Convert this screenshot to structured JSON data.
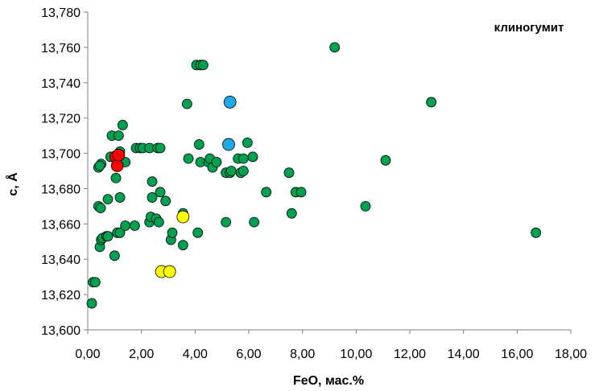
{
  "chart_data": {
    "type": "scatter",
    "title": "",
    "annotation": "клиногумит",
    "xlabel": "FeO, мас.%",
    "ylabel": "c, Å",
    "xlim": [
      0,
      18
    ],
    "ylim": [
      13.6,
      13.78
    ],
    "grid": false,
    "x_ticks": [
      0,
      2,
      4,
      6,
      8,
      10,
      12,
      14,
      16,
      18
    ],
    "y_ticks": [
      13.6,
      13.62,
      13.64,
      13.66,
      13.68,
      13.7,
      13.72,
      13.74,
      13.76,
      13.78
    ],
    "x_tick_labels": [
      "0,00",
      "2,00",
      "4,00",
      "6,00",
      "8,00",
      "10,00",
      "12,00",
      "14,00",
      "16,00",
      "18,00"
    ],
    "y_tick_labels": [
      "13,600",
      "13,620",
      "13,640",
      "13,660",
      "13,680",
      "13,700",
      "13,720",
      "13,740",
      "13,760",
      "13,780"
    ],
    "series": [
      {
        "color": "#00a050",
        "points": [
          [
            0.15,
            13.615
          ],
          [
            0.2,
            13.627
          ],
          [
            0.28,
            13.627
          ],
          [
            0.4,
            13.692
          ],
          [
            0.5,
            13.694
          ],
          [
            0.45,
            13.693
          ],
          [
            0.4,
            13.67
          ],
          [
            0.48,
            13.669
          ],
          [
            0.45,
            13.647
          ],
          [
            0.5,
            13.651
          ],
          [
            0.55,
            13.652
          ],
          [
            0.7,
            13.653
          ],
          [
            0.75,
            13.653
          ],
          [
            0.75,
            13.674
          ],
          [
            0.85,
            13.698
          ],
          [
            0.9,
            13.71
          ],
          [
            1.0,
            13.642
          ],
          [
            1.05,
            13.686
          ],
          [
            1.1,
            13.655
          ],
          [
            1.15,
            13.71
          ],
          [
            1.2,
            13.655
          ],
          [
            1.2,
            13.675
          ],
          [
            1.2,
            13.701
          ],
          [
            1.3,
            13.716
          ],
          [
            1.4,
            13.695
          ],
          [
            1.4,
            13.659
          ],
          [
            1.75,
            13.659
          ],
          [
            1.8,
            13.703
          ],
          [
            1.95,
            13.703
          ],
          [
            2.05,
            13.703
          ],
          [
            2.3,
            13.661
          ],
          [
            2.35,
            13.664
          ],
          [
            2.3,
            13.703
          ],
          [
            2.4,
            13.684
          ],
          [
            2.4,
            13.675
          ],
          [
            2.55,
            13.663
          ],
          [
            2.6,
            13.703
          ],
          [
            2.65,
            13.661
          ],
          [
            2.7,
            13.703
          ],
          [
            2.7,
            13.678
          ],
          [
            2.9,
            13.673
          ],
          [
            3.1,
            13.651
          ],
          [
            3.15,
            13.655
          ],
          [
            3.55,
            13.648
          ],
          [
            3.55,
            13.666
          ],
          [
            3.7,
            13.728
          ],
          [
            3.75,
            13.697
          ],
          [
            4.05,
            13.75
          ],
          [
            4.1,
            13.655
          ],
          [
            4.15,
            13.705
          ],
          [
            4.2,
            13.695
          ],
          [
            4.2,
            13.75
          ],
          [
            4.3,
            13.75
          ],
          [
            4.5,
            13.695
          ],
          [
            4.55,
            13.697
          ],
          [
            4.65,
            13.692
          ],
          [
            4.8,
            13.695
          ],
          [
            5.15,
            13.661
          ],
          [
            5.15,
            13.689
          ],
          [
            5.3,
            13.689
          ],
          [
            5.35,
            13.69
          ],
          [
            5.6,
            13.697
          ],
          [
            5.7,
            13.689
          ],
          [
            5.8,
            13.697
          ],
          [
            5.8,
            13.69
          ],
          [
            5.95,
            13.706
          ],
          [
            6.15,
            13.698
          ],
          [
            6.2,
            13.661
          ],
          [
            6.65,
            13.678
          ],
          [
            7.5,
            13.689
          ],
          [
            7.6,
            13.666
          ],
          [
            7.75,
            13.678
          ],
          [
            7.95,
            13.678
          ],
          [
            9.2,
            13.76
          ],
          [
            10.35,
            13.67
          ],
          [
            11.1,
            13.696
          ],
          [
            12.8,
            13.729
          ],
          [
            16.7,
            13.655
          ]
        ]
      },
      {
        "color": "#ff0000",
        "points": [
          [
            1.05,
            13.698
          ],
          [
            1.1,
            13.693
          ],
          [
            1.15,
            13.699
          ]
        ]
      },
      {
        "color": "#20a8e8",
        "points": [
          [
            5.25,
            13.705
          ],
          [
            5.3,
            13.729
          ]
        ]
      },
      {
        "color": "#ffff00",
        "points": [
          [
            2.75,
            13.633
          ],
          [
            3.05,
            13.633
          ],
          [
            3.55,
            13.664
          ]
        ]
      }
    ]
  }
}
